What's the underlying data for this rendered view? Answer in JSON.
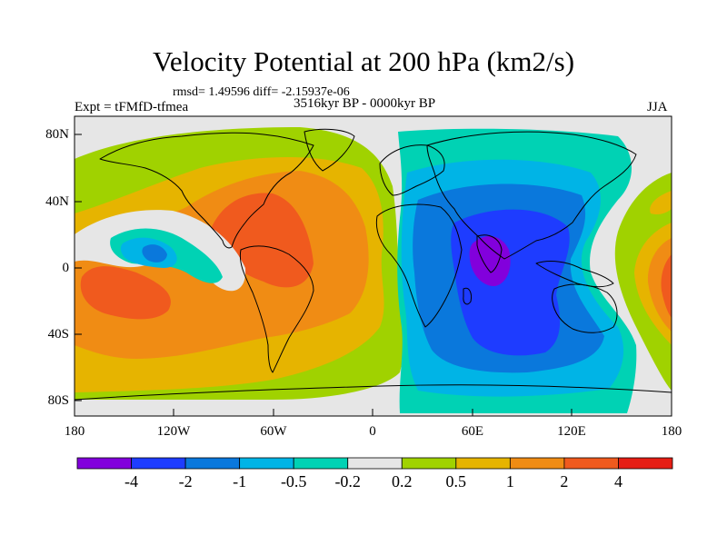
{
  "title": "Velocity Potential at 200 hPa (km2/s)",
  "stats": "rmsd= 1.49596 diff= -2.15937e-06",
  "experiment": "Expt = tFMfD-tfmea",
  "period": "3516kyr BP - 0000kyr BP",
  "season": "JJA",
  "lat_ticks": [
    "80N",
    "40N",
    "0",
    "40S",
    "80S"
  ],
  "lon_ticks": [
    "180",
    "120W",
    "60W",
    "0",
    "60E",
    "120E",
    "180"
  ],
  "colorbar": {
    "colors": [
      "#8200dc",
      "#1e3cff",
      "#0a78dc",
      "#00b4e6",
      "#00d2b4",
      "#e6e6e6",
      "#a0d200",
      "#e6b400",
      "#f08c14",
      "#f05a1e",
      "#e61e14"
    ],
    "labels": [
      "-4",
      "-2",
      "-1",
      "-0.5",
      "-0.2",
      "0.2",
      "0.5",
      "1",
      "2",
      "4"
    ]
  },
  "chart_data": {
    "type": "heatmap",
    "variable": "Velocity potential anomaly at 200 hPa",
    "units": "km2/s",
    "levels": [
      -4,
      -2,
      -1,
      -0.5,
      -0.2,
      0.2,
      0.5,
      1,
      2,
      4
    ],
    "x_range_deg": [
      -180,
      180
    ],
    "y_range_deg": [
      -90,
      90
    ],
    "features": [
      {
        "name": "Atlantic/Americas positive maximum",
        "lon": -40,
        "lat": 0,
        "value": 2.5
      },
      {
        "name": "eastern Pacific positive maximum",
        "lon": -145,
        "lat": -15,
        "value": 2.5
      },
      {
        "name": "eastern Pacific small negative center",
        "lon": -140,
        "lat": 10,
        "value": -0.7
      },
      {
        "name": "Indian Ocean negative minimum",
        "lon": 70,
        "lat": 5,
        "value": -4.5
      },
      {
        "name": "western Pacific positive edge",
        "lon": 178,
        "lat": -10,
        "value": 2.2
      }
    ]
  }
}
